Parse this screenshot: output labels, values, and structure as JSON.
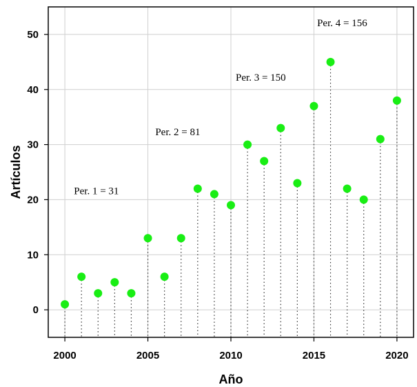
{
  "chart_data": {
    "type": "scatter",
    "title": "",
    "xlabel": "Año",
    "ylabel": "Artículos",
    "xlim": [
      1999,
      2021
    ],
    "ylim": [
      -5,
      55
    ],
    "x_ticks": [
      2000,
      2005,
      2010,
      2015,
      2020
    ],
    "y_ticks": [
      0,
      10,
      20,
      30,
      40,
      50
    ],
    "grid": true,
    "style": "lollipop",
    "point_color": "#19ee14",
    "series": [
      {
        "x": [
          2000,
          2001,
          2002,
          2003,
          2004,
          2005,
          2006,
          2007,
          2008,
          2009,
          2010,
          2011,
          2012,
          2013,
          2014,
          2015,
          2016,
          2017,
          2018,
          2019,
          2020
        ],
        "values": [
          1,
          6,
          3,
          5,
          3,
          13,
          6,
          13,
          22,
          21,
          19,
          30,
          27,
          33,
          23,
          37,
          45,
          22,
          20,
          31,
          38
        ]
      }
    ],
    "annotations": [
      {
        "text": "Per. 1 = 31",
        "x": 2001.9,
        "y": 21
      },
      {
        "text": "Per. 2 = 81",
        "x": 2006.8,
        "y": 31.7
      },
      {
        "text": "Per. 3 = 150",
        "x": 2011.8,
        "y": 41.6
      },
      {
        "text": "Per. 4 = 156",
        "x": 2016.7,
        "y": 51.5
      }
    ]
  }
}
